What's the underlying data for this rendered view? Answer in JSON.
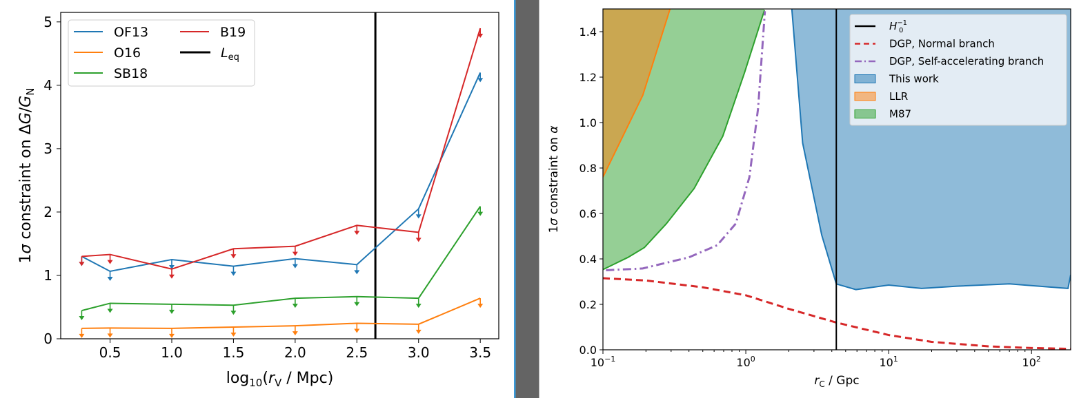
{
  "colors": {
    "OF13": "#1f77b4",
    "O16": "#ff7f0e",
    "SB18": "#2ca02c",
    "B19": "#d62728",
    "Leq": "#000000",
    "divider": "#646464",
    "divider_edge": "#3a9ad9",
    "purple": "#9467bd"
  },
  "chart_data": [
    {
      "type": "line",
      "xlabel": {
        "pre": "log",
        "sub": "10",
        "open": "(",
        "var": "r",
        "varsub": "V",
        "post": " / Mpc)"
      },
      "ylabel": {
        "pre": "1",
        "sigma": "σ",
        "mid": " constraint on Δ",
        "g": "G",
        "slash": "/",
        "g2": "G",
        "g2sub": "N"
      },
      "xlim": [
        0.1,
        3.65
      ],
      "ylim": [
        0,
        5.15
      ],
      "xticks": [
        "0.5",
        "1.0",
        "1.5",
        "2.0",
        "2.5",
        "3.0",
        "3.5"
      ],
      "yticks": [
        "0",
        "1",
        "2",
        "3",
        "4",
        "5"
      ],
      "x": [
        0.27,
        0.5,
        1.0,
        1.5,
        2.0,
        2.5,
        3.0,
        3.5
      ],
      "upper_limits": true,
      "series": [
        {
          "name": "OF13",
          "color": "#1f77b4",
          "values": [
            1.3,
            1.065,
            1.25,
            1.145,
            1.265,
            1.17,
            2.05,
            4.2
          ]
        },
        {
          "name": "O16",
          "color": "#ff7f0e",
          "values": [
            0.165,
            0.17,
            0.165,
            0.185,
            0.205,
            0.245,
            0.23,
            0.64
          ]
        },
        {
          "name": "SB18",
          "color": "#2ca02c",
          "values": [
            0.445,
            0.56,
            0.545,
            0.53,
            0.64,
            0.665,
            0.64,
            2.09
          ]
        },
        {
          "name": "B19",
          "color": "#d62728",
          "values": [
            1.3,
            1.33,
            1.1,
            1.42,
            1.46,
            1.79,
            1.68,
            4.9
          ]
        }
      ],
      "vline": {
        "name": "L",
        "sub": "eq",
        "x": 2.65,
        "color": "#000000"
      },
      "legend": {
        "placement": "top-left",
        "columns": 2
      }
    },
    {
      "type": "area",
      "xscale": "log",
      "xlabel": {
        "var": "r",
        "varsub": "C",
        "post": " / Gpc"
      },
      "ylabel": {
        "pre": "1",
        "sigma": "σ",
        "mid": " constraint on ",
        "alpha": "α"
      },
      "xlim": [
        0.1,
        188
      ],
      "ylim": [
        0,
        1.5
      ],
      "xticks": [
        {
          "base": "10",
          "exp": "−1",
          "v": 0.1
        },
        {
          "base": "10",
          "exp": "0",
          "v": 1
        },
        {
          "base": "10",
          "exp": "1",
          "v": 10
        },
        {
          "base": "10",
          "exp": "2",
          "v": 100
        }
      ],
      "yticks": [
        "0.0",
        "0.2",
        "0.4",
        "0.6",
        "0.8",
        "1.0",
        "1.2",
        "1.4"
      ],
      "vline": {
        "label": "H",
        "sub": "0",
        "sup": "−1",
        "x": 4.3,
        "color": "#000000"
      },
      "lines": [
        {
          "name": "DGP, Normal branch",
          "color": "#d62728",
          "style": "dashed",
          "x": [
            0.1,
            0.2,
            0.5,
            1,
            2,
            4.3,
            10,
            20,
            50,
            100,
            188
          ],
          "y": [
            0.315,
            0.305,
            0.275,
            0.24,
            0.18,
            0.12,
            0.065,
            0.035,
            0.015,
            0.008,
            0.004
          ]
        },
        {
          "name": "DGP, Self-accelerating branch",
          "color": "#9467bd",
          "style": "dashdot",
          "x": [
            0.105,
            0.19,
            0.4,
            0.63,
            0.85,
            1.06,
            1.22,
            1.36
          ],
          "y": [
            0.35,
            0.358,
            0.407,
            0.46,
            0.555,
            0.76,
            1.065,
            1.49
          ]
        }
      ],
      "fills": [
        {
          "name": "This work",
          "color": "#1f77b4",
          "side": "above",
          "x": [
            2.1,
            2.5,
            3.4,
            4.3,
            5.9,
            10,
            17,
            30,
            70,
            180,
            188
          ],
          "y": [
            1.5,
            0.91,
            0.505,
            0.29,
            0.265,
            0.285,
            0.27,
            0.28,
            0.29,
            0.27,
            0.33
          ]
        },
        {
          "name": "LLR",
          "color": "#ff7f0e",
          "side": "above",
          "x": [
            0.1,
            0.19,
            0.295
          ],
          "y": [
            0.76,
            1.12,
            1.5
          ]
        },
        {
          "name": "M87",
          "color": "#2ca02c",
          "side": "above",
          "x": [
            0.1,
            0.15,
            0.195,
            0.278,
            0.435,
            0.69,
            0.98,
            1.35
          ],
          "y": [
            0.353,
            0.407,
            0.45,
            0.555,
            0.71,
            0.94,
            1.22,
            1.494
          ]
        }
      ],
      "legend": {
        "placement": "top-right",
        "entries": [
          {
            "kind": "line",
            "style": "solid",
            "color": "#000000",
            "label": "H",
            "sub": "0",
            "sup": "−1"
          },
          {
            "kind": "line",
            "style": "dashed",
            "color": "#d62728",
            "label": "DGP, Normal branch"
          },
          {
            "kind": "line",
            "style": "dashdot",
            "color": "#9467bd",
            "label": "DGP, Self-accelerating branch"
          },
          {
            "kind": "patch",
            "color": "#1f77b4",
            "label": "This work"
          },
          {
            "kind": "patch",
            "color": "#ff7f0e",
            "label": "LLR"
          },
          {
            "kind": "patch",
            "color": "#2ca02c",
            "label": "M87"
          }
        ]
      }
    }
  ]
}
